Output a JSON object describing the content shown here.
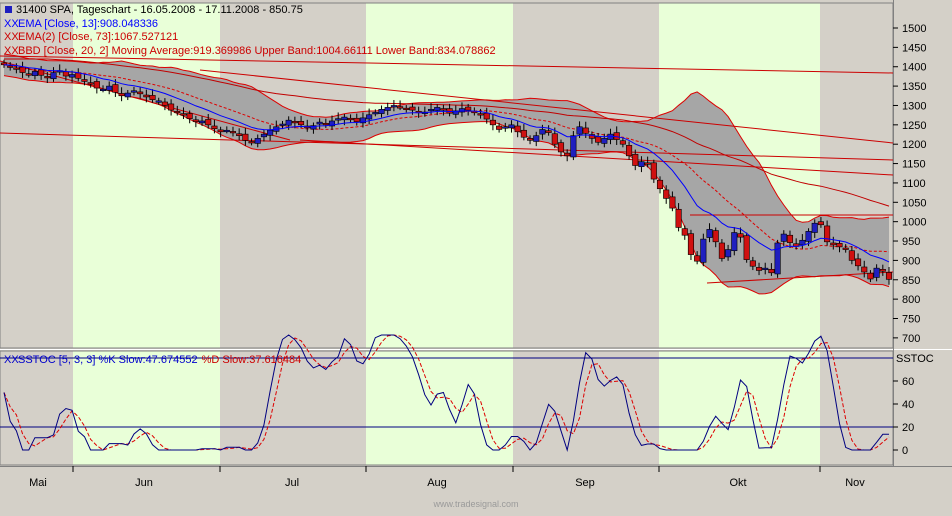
{
  "header": {
    "title": "31400  SPA, Tageschart - 16.05.2008 - 17.11.2008 - 850.75",
    "ema13": "EMA [Close, 13]:908.048336",
    "ema73": "EMA(2) [Close, 73]:1067.527121",
    "bb": "BBD [Close, 20, 2] Moving Average:919.369986 Upper Band:1004.66111 Lower Band:834.078862",
    "stoch": "SSTOC [5, 3, 3] %K Slow:47.674552 %D Slow:37.616484",
    "stoch_k_prefix": "SSTOC [5, 3, 3] %K Slow:47.674552",
    "stoch_d_suffix": "%D Slow:37.616484",
    "stoch_axis_title": "SSTOC",
    "x_marker": "XX",
    "watermark": "www.tradesignal.com"
  },
  "colors": {
    "up": "#1f1fbf",
    "down": "#d01010",
    "ema13": "#0000ff",
    "ema73": "#c00000",
    "band_fill": "#a6a6a6",
    "band_line": "#dd0000",
    "month_green": "#e9ffd8",
    "month_gray": "#d4d0c8"
  },
  "chart_data": [
    {
      "type": "candlestick",
      "title": "31400  SPA, Tageschart - 16.05.2008 - 17.11.2008 - 850.75",
      "x_months": [
        "Mai",
        "Jun",
        "Jul",
        "Aug",
        "Sep",
        "Okt",
        "Nov"
      ],
      "y_ticks": [
        700,
        750,
        800,
        850,
        900,
        950,
        1000,
        1050,
        1100,
        1150,
        1200,
        1250,
        1300,
        1350,
        1400,
        1450,
        1500
      ],
      "ylim": [
        670,
        1540
      ],
      "close_by_day": [
        1405,
        1400,
        1395,
        1385,
        1380,
        1388,
        1378,
        1372,
        1385,
        1390,
        1376,
        1380,
        1370,
        1362,
        1358,
        1345,
        1342,
        1350,
        1334,
        1325,
        1332,
        1338,
        1330,
        1322,
        1315,
        1312,
        1300,
        1288,
        1282,
        1275,
        1266,
        1258,
        1260,
        1250,
        1240,
        1232,
        1236,
        1230,
        1222,
        1210,
        1205,
        1215,
        1226,
        1236,
        1245,
        1252,
        1262,
        1255,
        1250,
        1242,
        1248,
        1257,
        1250,
        1260,
        1266,
        1270,
        1263,
        1258,
        1268,
        1276,
        1282,
        1290,
        1295,
        1300,
        1296,
        1292,
        1288,
        1282,
        1283,
        1290,
        1295,
        1288,
        1280,
        1286,
        1292,
        1288,
        1282,
        1276,
        1265,
        1250,
        1238,
        1245,
        1250,
        1232,
        1218,
        1210,
        1222,
        1238,
        1230,
        1200,
        1180,
        1170,
        1222,
        1245,
        1228,
        1215,
        1205,
        1215,
        1226,
        1212,
        1200,
        1170,
        1145,
        1155,
        1148,
        1110,
        1085,
        1060,
        1035,
        985,
        965,
        915,
        898,
        955,
        980,
        948,
        905,
        928,
        972,
        960,
        902,
        885,
        874,
        880,
        868,
        945,
        968,
        946,
        936,
        952,
        975,
        996,
        992,
        948,
        940,
        935,
        928,
        900,
        886,
        870,
        852,
        880,
        872,
        851
      ],
      "series": [
        {
          "name": "EMA [Close, 13]",
          "last": 908.048336
        },
        {
          "name": "EMA(2) [Close, 73]",
          "last": 1067.527121
        },
        {
          "name": "BBD [Close, 20, 2] Moving Average",
          "last": 919.369986
        },
        {
          "name": "Upper Band",
          "last": 1004.66111
        },
        {
          "name": "Lower Band",
          "last": 834.078862
        }
      ]
    },
    {
      "type": "line",
      "title": "SSTOC [5, 3, 3] %K Slow:47.674552 %D Slow:37.616484",
      "y_ticks": [
        0,
        20,
        40,
        60
      ],
      "ylim": [
        -12,
        92
      ],
      "levels": [
        20,
        80
      ],
      "series": [
        {
          "name": "%K Slow",
          "last": 47.674552
        },
        {
          "name": "%D Slow",
          "last": 37.616484
        }
      ]
    }
  ]
}
